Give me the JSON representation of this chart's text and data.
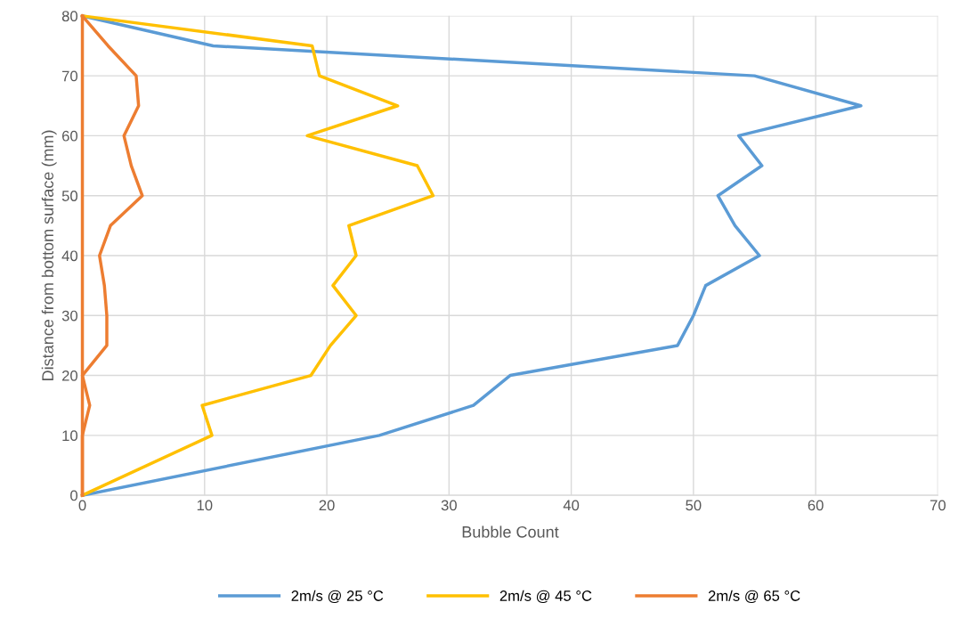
{
  "chart_data": {
    "type": "line",
    "xlabel": "Bubble Count",
    "ylabel": "Distance from bottom surface (mm)",
    "xlim": [
      0,
      70
    ],
    "xticks": [
      0,
      10,
      20,
      30,
      40,
      50,
      60,
      70
    ],
    "ylim": [
      0,
      80
    ],
    "yticks": [
      0,
      10,
      20,
      30,
      40,
      50,
      60,
      70,
      80
    ],
    "grid": true,
    "legend": "bottom",
    "marker": "none",
    "line_style": "solid",
    "series": [
      {
        "name": "2m/s @ 25 °C",
        "color": "#5b9bd5",
        "x": [
          0,
          24.3,
          32,
          35,
          48.7,
          50,
          51,
          55.4,
          53.4,
          52,
          55.6,
          53.7,
          63.7,
          55,
          10.7,
          0
        ],
        "values": [
          0,
          10,
          15,
          20,
          25,
          30,
          35,
          40,
          45,
          50,
          55,
          60,
          65,
          70,
          75,
          80
        ]
      },
      {
        "name": "2m/s @ 45 °C",
        "color": "#ffc000",
        "x": [
          0,
          10.6,
          9.8,
          18.7,
          20.3,
          22.4,
          20.5,
          22.4,
          21.8,
          28.7,
          27.4,
          18.4,
          25.8,
          19.4,
          18.8,
          0
        ],
        "values": [
          0,
          10,
          15,
          20,
          25,
          30,
          35,
          40,
          45,
          50,
          55,
          60,
          65,
          70,
          75,
          80
        ]
      },
      {
        "name": "2m/s @ 65 °C",
        "color": "#ed7d31",
        "x": [
          0,
          0,
          0.6,
          0,
          2,
          2,
          1.8,
          1.4,
          2.3,
          4.9,
          4,
          3.4,
          4.6,
          4.4,
          2.1,
          0
        ],
        "values": [
          0,
          10,
          15,
          20,
          25,
          30,
          35,
          40,
          45,
          50,
          55,
          60,
          65,
          70,
          75,
          80
        ]
      },
      {
        "color": "#ed7d31",
        "x": [
          0,
          0,
          0,
          0,
          0,
          0,
          0,
          0,
          0
        ],
        "values": [
          0,
          10,
          20,
          30,
          40,
          50,
          60,
          70,
          80
        ]
      }
    ]
  }
}
